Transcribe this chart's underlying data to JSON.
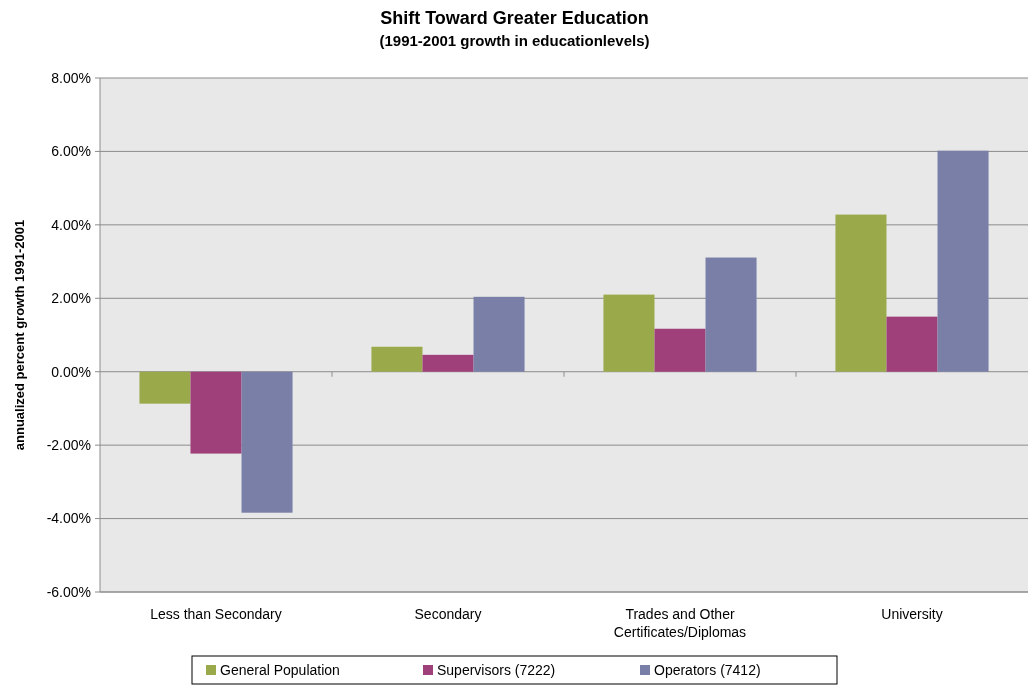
{
  "chart_data": {
    "type": "bar",
    "title": "Shift Toward Greater Education",
    "subtitle": "(1991-2001 growth in educationlevels)",
    "ylabel": "annualized percent growth 1991-2001",
    "categories": [
      "Less than Secondary",
      "Secondary",
      "Trades and Other Certificates/Diplomas",
      "University"
    ],
    "series": [
      {
        "name": "General Population",
        "color": "#9aaa4a",
        "values": [
          -0.87,
          0.68,
          2.1,
          4.28
        ]
      },
      {
        "name": "Supervisors (7222)",
        "color": "#a0407a",
        "values": [
          -2.23,
          0.46,
          1.17,
          1.5
        ]
      },
      {
        "name": "Operators (7412)",
        "color": "#7a7fa8",
        "values": [
          -3.84,
          2.04,
          3.11,
          6.02
        ]
      }
    ],
    "ylim": [
      -6,
      8
    ],
    "yticks": [
      {
        "value": -6,
        "label": "-6.00%"
      },
      {
        "value": -4,
        "label": "-4.00%"
      },
      {
        "value": -2,
        "label": "-2.00%"
      },
      {
        "value": 0,
        "label": "0.00%"
      },
      {
        "value": 2,
        "label": "2.00%"
      },
      {
        "value": 4,
        "label": "4.00%"
      },
      {
        "value": 6,
        "label": "6.00%"
      },
      {
        "value": 8,
        "label": "8.00%"
      }
    ],
    "grid": "y",
    "legend": "bottom"
  }
}
